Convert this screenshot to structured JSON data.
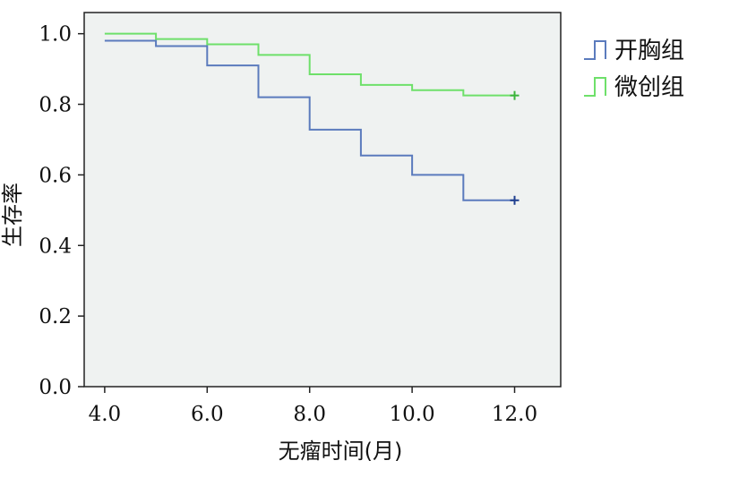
{
  "chart_data": {
    "type": "line",
    "step": true,
    "xlabel": "无瘤时间(月)",
    "ylabel": "生存率",
    "xlim": [
      3.6,
      12.9
    ],
    "ylim": [
      0.0,
      1.06
    ],
    "x_ticks": [
      4.0,
      6.0,
      8.0,
      10.0,
      12.0
    ],
    "x_tick_labels": [
      "4.0",
      "6.0",
      "8.0",
      "10.0",
      "12.0"
    ],
    "y_ticks": [
      0.0,
      0.2,
      0.4,
      0.6,
      0.8,
      1.0
    ],
    "y_tick_labels": [
      "0.0",
      "0.2",
      "0.4",
      "0.6",
      "0.8",
      "1.0"
    ],
    "grid": false,
    "legend_position": "right",
    "plot_background": "#eff2f1",
    "series": [
      {
        "name": "开胸组",
        "color": "#5b7bbd",
        "censor_color": "#1f3f8f",
        "steps": [
          {
            "x": 4.0,
            "y": 0.98
          },
          {
            "x": 5.0,
            "y": 0.965
          },
          {
            "x": 6.0,
            "y": 0.91
          },
          {
            "x": 7.0,
            "y": 0.82
          },
          {
            "x": 8.0,
            "y": 0.728
          },
          {
            "x": 9.0,
            "y": 0.655
          },
          {
            "x": 10.0,
            "y": 0.6
          },
          {
            "x": 11.0,
            "y": 0.528
          },
          {
            "x": 12.0,
            "y": 0.528
          }
        ],
        "censored": [
          {
            "x": 12.0,
            "y": 0.528
          }
        ]
      },
      {
        "name": "微创组",
        "color": "#6ee06a",
        "censor_color": "#3bb43b",
        "steps": [
          {
            "x": 4.0,
            "y": 1.0
          },
          {
            "x": 5.0,
            "y": 0.985
          },
          {
            "x": 6.0,
            "y": 0.97
          },
          {
            "x": 7.0,
            "y": 0.94
          },
          {
            "x": 8.0,
            "y": 0.885
          },
          {
            "x": 9.0,
            "y": 0.855
          },
          {
            "x": 10.0,
            "y": 0.84
          },
          {
            "x": 11.0,
            "y": 0.825
          },
          {
            "x": 12.0,
            "y": 0.825
          }
        ],
        "censored": [
          {
            "x": 12.0,
            "y": 0.825
          }
        ]
      }
    ]
  }
}
